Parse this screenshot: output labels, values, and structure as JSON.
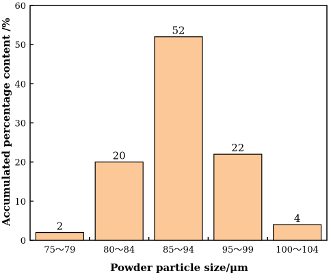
{
  "chart_data": {
    "type": "bar",
    "title": "",
    "xlabel": "Powder particle size/μm",
    "ylabel": "Accumulated percentage content /%",
    "categories": [
      "75～79",
      "80～84",
      "85～94",
      "95～99",
      "100～104"
    ],
    "values": [
      2,
      20,
      52,
      22,
      4
    ],
    "data_labels": [
      "2",
      "20",
      "52",
      "22",
      "4"
    ],
    "ylim": [
      0,
      60
    ],
    "yticks": [
      "0",
      "10",
      "20",
      "30",
      "40",
      "50",
      "60"
    ],
    "grid": false,
    "legend": "none",
    "bar_color": "#fcc897",
    "bar_edge_color": "#000000"
  }
}
